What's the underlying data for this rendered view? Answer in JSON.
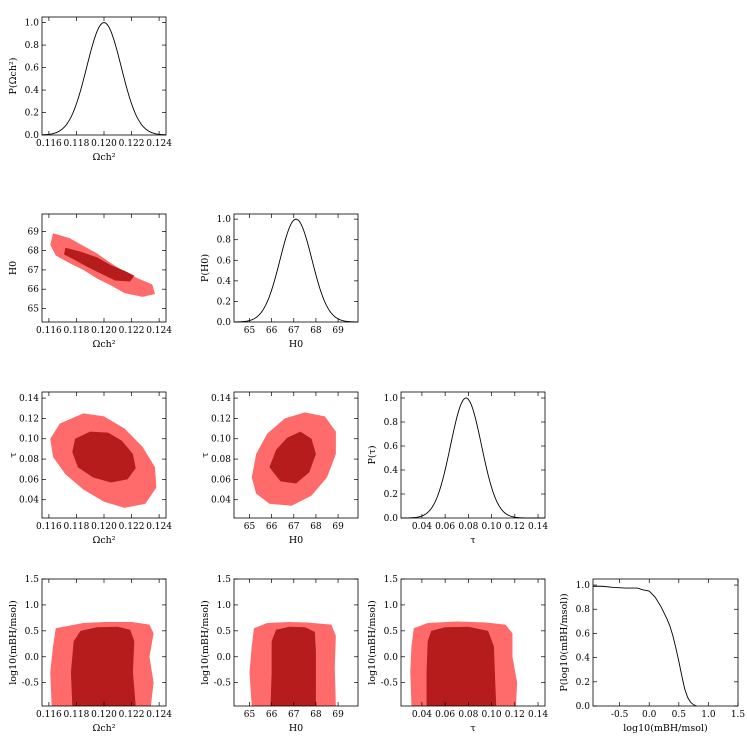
{
  "chart_data": {
    "type": "corner-plot",
    "colors": {
      "inner": "#b71c1c",
      "outer": "#ff6b6b",
      "line": "#000000",
      "frame": "#000000"
    },
    "parameters": {
      "omega": {
        "label": "Ωch²",
        "range": [
          0.1155,
          0.1245
        ],
        "ticks": [
          0.116,
          0.118,
          0.12,
          0.122,
          0.124
        ],
        "tick_labels": [
          "0.116",
          "0.118",
          "0.120",
          "0.122",
          "0.124"
        ]
      },
      "h0": {
        "label": "H0",
        "range": [
          64.3,
          69.9
        ],
        "ticks": [
          65,
          66,
          67,
          68,
          69
        ],
        "tick_labels": [
          "65",
          "66",
          "67",
          "68",
          "69"
        ]
      },
      "tau": {
        "label": "τ",
        "range": [
          0.022,
          0.146
        ],
        "ticks": [
          0.04,
          0.06,
          0.08,
          0.1,
          0.12,
          0.14
        ],
        "tick_labels": [
          "0.04",
          "0.06",
          "0.08",
          "0.10",
          "0.12",
          "0.14"
        ]
      },
      "mbh": {
        "label": "log10(mBH/msol)",
        "range": [
          -0.95,
          1.5
        ],
        "ticks": [
          -0.5,
          0.0,
          0.5,
          1.0,
          1.5
        ],
        "tick_labels": [
          "-0.5",
          "0.0",
          "0.5",
          "1.0",
          "1.5"
        ]
      }
    },
    "marginals": [
      {
        "name": "omega-marginal",
        "param": "omega",
        "ylabel": "P(Ωch²)",
        "mean": 0.12,
        "sigma": 0.00125
      },
      {
        "name": "h0-marginal",
        "param": "h0",
        "ylabel": "P(H0)",
        "mean": 67.1,
        "sigma": 0.72
      },
      {
        "name": "tau-marginal",
        "param": "tau",
        "ylabel": "P(τ)",
        "mean": 0.078,
        "sigma": 0.0133
      },
      {
        "name": "mbh-marginal",
        "param": "mbh",
        "ylabel": "P(log10(mBH/msol))",
        "x": [
          -0.95,
          -0.8,
          -0.6,
          -0.4,
          -0.2,
          -0.1,
          0.0,
          0.1,
          0.2,
          0.3,
          0.35,
          0.4,
          0.45,
          0.5,
          0.55,
          0.6,
          0.65,
          0.7,
          0.75,
          0.8
        ],
        "y": [
          0.99,
          0.99,
          0.98,
          0.975,
          0.975,
          0.96,
          0.95,
          0.9,
          0.82,
          0.72,
          0.66,
          0.58,
          0.48,
          0.37,
          0.25,
          0.14,
          0.07,
          0.03,
          0.01,
          0.0
        ]
      }
    ],
    "y_ticks_prob": [
      0.0,
      0.2,
      0.4,
      0.6,
      0.8,
      1.0
    ],
    "y_tick_labels_prob": [
      "0.0",
      "0.2",
      "0.4",
      "0.6",
      "0.8",
      "1.0"
    ],
    "joints": [
      {
        "name": "omega-h0-contour",
        "x": "omega",
        "y": "h0",
        "outer": [
          [
            0.1163,
            68.9
          ],
          [
            0.1175,
            68.65
          ],
          [
            0.1185,
            68.25
          ],
          [
            0.1195,
            67.85
          ],
          [
            0.1205,
            67.35
          ],
          [
            0.1215,
            66.9
          ],
          [
            0.1225,
            66.55
          ],
          [
            0.1235,
            66.25
          ],
          [
            0.1237,
            65.75
          ],
          [
            0.1228,
            65.6
          ],
          [
            0.1215,
            65.8
          ],
          [
            0.1205,
            66.2
          ],
          [
            0.1195,
            66.55
          ],
          [
            0.1185,
            67.0
          ],
          [
            0.1175,
            67.35
          ],
          [
            0.1165,
            67.75
          ],
          [
            0.1161,
            68.3
          ]
        ],
        "inner": [
          [
            0.1172,
            68.15
          ],
          [
            0.1183,
            67.95
          ],
          [
            0.1195,
            67.65
          ],
          [
            0.1205,
            67.25
          ],
          [
            0.1215,
            66.95
          ],
          [
            0.1222,
            66.7
          ],
          [
            0.1219,
            66.4
          ],
          [
            0.1208,
            66.45
          ],
          [
            0.1198,
            66.8
          ],
          [
            0.1188,
            67.15
          ],
          [
            0.1178,
            67.55
          ],
          [
            0.1171,
            67.8
          ]
        ]
      },
      {
        "name": "omega-tau-contour",
        "x": "omega",
        "y": "tau",
        "outer": [
          [
            0.1168,
            0.115
          ],
          [
            0.1185,
            0.125
          ],
          [
            0.12,
            0.122
          ],
          [
            0.1215,
            0.11
          ],
          [
            0.1228,
            0.092
          ],
          [
            0.1237,
            0.072
          ],
          [
            0.1238,
            0.052
          ],
          [
            0.123,
            0.036
          ],
          [
            0.1215,
            0.032
          ],
          [
            0.12,
            0.038
          ],
          [
            0.1185,
            0.05
          ],
          [
            0.1172,
            0.065
          ],
          [
            0.1163,
            0.082
          ],
          [
            0.1161,
            0.1
          ]
        ],
        "inner": [
          [
            0.1179,
            0.1
          ],
          [
            0.119,
            0.107
          ],
          [
            0.1203,
            0.106
          ],
          [
            0.1213,
            0.098
          ],
          [
            0.1221,
            0.085
          ],
          [
            0.1223,
            0.071
          ],
          [
            0.1217,
            0.06
          ],
          [
            0.1205,
            0.057
          ],
          [
            0.1192,
            0.062
          ],
          [
            0.1181,
            0.072
          ],
          [
            0.1177,
            0.087
          ]
        ]
      },
      {
        "name": "h0-tau-contour",
        "x": "h0",
        "y": "tau",
        "outer": [
          [
            65.1,
            0.062
          ],
          [
            65.3,
            0.085
          ],
          [
            65.8,
            0.105
          ],
          [
            66.6,
            0.12
          ],
          [
            67.5,
            0.126
          ],
          [
            68.4,
            0.122
          ],
          [
            68.9,
            0.107
          ],
          [
            68.9,
            0.085
          ],
          [
            68.5,
            0.062
          ],
          [
            67.8,
            0.044
          ],
          [
            66.9,
            0.034
          ],
          [
            65.9,
            0.036
          ],
          [
            65.3,
            0.046
          ]
        ],
        "inner": [
          [
            65.9,
            0.072
          ],
          [
            66.2,
            0.089
          ],
          [
            66.7,
            0.101
          ],
          [
            67.3,
            0.107
          ],
          [
            67.8,
            0.1
          ],
          [
            68.0,
            0.085
          ],
          [
            67.7,
            0.067
          ],
          [
            67.1,
            0.056
          ],
          [
            66.4,
            0.058
          ]
        ]
      },
      {
        "name": "omega-mbh-contour",
        "x": "omega",
        "y": "mbh",
        "outer": [
          [
            0.1162,
            -0.95
          ],
          [
            0.1161,
            -0.3
          ],
          [
            0.1163,
            0.2
          ],
          [
            0.1165,
            0.55
          ],
          [
            0.1185,
            0.65
          ],
          [
            0.12,
            0.67
          ],
          [
            0.122,
            0.67
          ],
          [
            0.1233,
            0.62
          ],
          [
            0.1236,
            0.45
          ],
          [
            0.1233,
            0.0
          ],
          [
            0.1236,
            -0.5
          ],
          [
            0.1234,
            -0.95
          ]
        ],
        "inner": [
          [
            0.1177,
            -0.95
          ],
          [
            0.1176,
            -0.3
          ],
          [
            0.1178,
            0.3
          ],
          [
            0.1183,
            0.5
          ],
          [
            0.1195,
            0.57
          ],
          [
            0.121,
            0.58
          ],
          [
            0.1219,
            0.52
          ],
          [
            0.1222,
            0.3
          ],
          [
            0.1221,
            -0.3
          ],
          [
            0.1223,
            -0.95
          ]
        ]
      },
      {
        "name": "h0-mbh-contour",
        "x": "h0",
        "y": "mbh",
        "outer": [
          [
            65.1,
            -0.95
          ],
          [
            65.0,
            -0.3
          ],
          [
            65.1,
            0.2
          ],
          [
            65.2,
            0.55
          ],
          [
            65.8,
            0.65
          ],
          [
            66.8,
            0.67
          ],
          [
            67.6,
            0.66
          ],
          [
            68.7,
            0.62
          ],
          [
            68.9,
            0.4
          ],
          [
            68.85,
            -0.2
          ],
          [
            68.9,
            -0.95
          ]
        ],
        "inner": [
          [
            65.95,
            -0.95
          ],
          [
            66.0,
            -0.3
          ],
          [
            66.0,
            0.3
          ],
          [
            66.2,
            0.52
          ],
          [
            66.8,
            0.58
          ],
          [
            67.5,
            0.57
          ],
          [
            67.95,
            0.48
          ],
          [
            68.0,
            0.1
          ],
          [
            68.0,
            -0.95
          ]
        ]
      },
      {
        "name": "tau-mbh-contour",
        "x": "tau",
        "y": "mbh",
        "outer": [
          [
            0.031,
            -0.95
          ],
          [
            0.03,
            -0.3
          ],
          [
            0.031,
            0.2
          ],
          [
            0.033,
            0.55
          ],
          [
            0.045,
            0.65
          ],
          [
            0.07,
            0.68
          ],
          [
            0.095,
            0.66
          ],
          [
            0.112,
            0.62
          ],
          [
            0.118,
            0.45
          ],
          [
            0.118,
            0.0
          ],
          [
            0.122,
            -0.5
          ],
          [
            0.121,
            -0.95
          ]
        ],
        "inner": [
          [
            0.044,
            -0.95
          ],
          [
            0.044,
            -0.3
          ],
          [
            0.045,
            0.3
          ],
          [
            0.048,
            0.5
          ],
          [
            0.06,
            0.57
          ],
          [
            0.08,
            0.58
          ],
          [
            0.097,
            0.5
          ],
          [
            0.102,
            0.2
          ],
          [
            0.103,
            -0.4
          ],
          [
            0.104,
            -0.95
          ]
        ]
      }
    ]
  }
}
